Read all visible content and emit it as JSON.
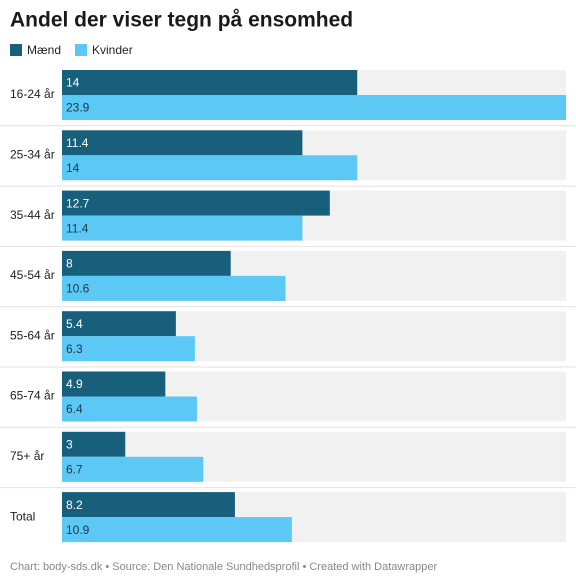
{
  "chart_data": {
    "type": "grouped-bar-horizontal",
    "title": "Andel der viser tegn på ensomhed",
    "categories": [
      "16-24 år",
      "25-34 år",
      "35-44 år",
      "45-54 år",
      "55-64 år",
      "65-74 år",
      "75+ år",
      "Total"
    ],
    "series": [
      {
        "name": "Mænd",
        "color": "#175f7b",
        "values": [
          14,
          11.4,
          12.7,
          8,
          5.4,
          4.9,
          3,
          8.2
        ]
      },
      {
        "name": "Kvinder",
        "color": "#5bc8f6",
        "values": [
          23.9,
          14,
          11.4,
          10.6,
          6.3,
          6.4,
          6.7,
          10.9
        ]
      }
    ],
    "footer": "Chart: body-sds.dk • Source: Den Nationale Sundhedsprofil • Created with Datawrapper"
  }
}
